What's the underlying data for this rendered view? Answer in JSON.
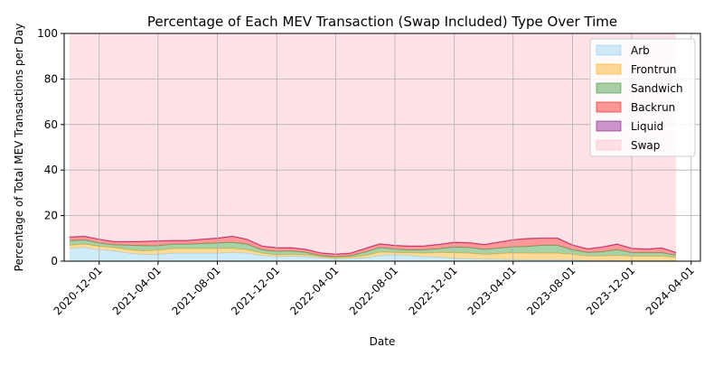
{
  "chart_data": {
    "type": "area",
    "stacked": true,
    "title": "Percentage of Each MEV Transaction (Swap Included) Type Over Time",
    "xlabel": "Date",
    "ylabel": "Percentage of Total MEV Transactions per Day",
    "xlim": [
      "2020-09-20",
      "2024-04-20"
    ],
    "ylim": [
      0,
      100
    ],
    "grid": true,
    "legend_position": "top-right",
    "x_ticks": [
      "2020-12-01",
      "2021-04-01",
      "2021-08-01",
      "2021-12-01",
      "2022-04-01",
      "2022-08-01",
      "2022-12-01",
      "2023-04-01",
      "2023-08-01",
      "2023-12-01",
      "2024-04-01"
    ],
    "y_ticks": [
      0,
      20,
      40,
      60,
      80,
      100
    ],
    "x": [
      "2020-10-01",
      "2020-11-01",
      "2020-12-01",
      "2021-01-01",
      "2021-02-01",
      "2021-03-01",
      "2021-04-01",
      "2021-05-01",
      "2021-06-01",
      "2021-07-01",
      "2021-08-01",
      "2021-09-01",
      "2021-10-01",
      "2021-11-01",
      "2021-12-01",
      "2022-01-01",
      "2022-02-01",
      "2022-03-01",
      "2022-04-01",
      "2022-05-01",
      "2022-06-01",
      "2022-07-01",
      "2022-08-01",
      "2022-09-01",
      "2022-10-01",
      "2022-11-01",
      "2022-12-01",
      "2023-01-01",
      "2023-02-01",
      "2023-03-01",
      "2023-04-01",
      "2023-05-01",
      "2023-06-01",
      "2023-07-01",
      "2023-08-01",
      "2023-09-01",
      "2023-10-01",
      "2023-11-01",
      "2023-12-01",
      "2024-01-01",
      "2024-02-01",
      "2024-03-01"
    ],
    "series": [
      {
        "name": "Arb",
        "color": "#87ceeb",
        "values": [
          5.5,
          6.0,
          5.0,
          4.5,
          3.5,
          3.0,
          3.0,
          3.5,
          3.5,
          3.5,
          3.5,
          3.8,
          3.5,
          2.5,
          2.0,
          2.3,
          2.0,
          1.5,
          1.0,
          1.2,
          1.5,
          2.5,
          2.8,
          2.5,
          2.0,
          1.8,
          1.2,
          1.0,
          0.8,
          0.8,
          0.6,
          0.5,
          0.5,
          0.5,
          0.5,
          0.3,
          0.3,
          0.3,
          0.2,
          0.2,
          0.2,
          0.2
        ]
      },
      {
        "name": "Frontrun",
        "color": "#ffa500",
        "values": [
          1.5,
          1.5,
          1.5,
          1.5,
          1.5,
          1.5,
          1.8,
          2.0,
          2.0,
          2.0,
          2.0,
          1.8,
          1.5,
          1.0,
          0.8,
          0.8,
          0.8,
          0.5,
          0.5,
          0.6,
          1.0,
          1.5,
          1.0,
          1.2,
          1.5,
          2.0,
          2.5,
          2.5,
          2.2,
          2.5,
          3.0,
          3.0,
          3.0,
          3.0,
          2.5,
          2.0,
          2.0,
          2.3,
          2.0,
          2.0,
          2.0,
          1.5
        ]
      },
      {
        "name": "Sandwich",
        "color": "#228b22",
        "values": [
          2.0,
          1.8,
          1.5,
          1.2,
          2.0,
          2.3,
          2.0,
          2.0,
          2.0,
          2.3,
          2.5,
          2.7,
          2.5,
          1.5,
          1.5,
          1.4,
          1.0,
          0.5,
          0.5,
          0.6,
          1.5,
          2.0,
          1.5,
          1.2,
          1.5,
          1.7,
          2.5,
          2.5,
          2.2,
          2.4,
          2.7,
          3.0,
          3.5,
          3.5,
          2.0,
          1.5,
          1.8,
          2.5,
          1.5,
          1.5,
          1.5,
          1.0
        ]
      },
      {
        "name": "Backrun",
        "color": "#ff0000",
        "values": [
          1.5,
          1.5,
          1.5,
          1.3,
          1.5,
          1.8,
          2.0,
          1.5,
          1.5,
          1.7,
          2.0,
          2.5,
          2.0,
          1.5,
          1.5,
          1.3,
          1.2,
          1.0,
          1.0,
          1.0,
          1.5,
          1.5,
          1.5,
          1.6,
          1.6,
          1.8,
          2.0,
          2.0,
          2.0,
          2.5,
          3.0,
          3.3,
          3.0,
          3.0,
          2.0,
          1.5,
          2.0,
          2.3,
          1.8,
          1.5,
          2.0,
          1.0
        ]
      },
      {
        "name": "Liquid",
        "color": "#800080",
        "values": [
          0.2,
          0.2,
          0.2,
          0.2,
          0.2,
          0.2,
          0.2,
          0.2,
          0.2,
          0.2,
          0.2,
          0.2,
          0.2,
          0.2,
          0.2,
          0.2,
          0.2,
          0.2,
          0.2,
          0.2,
          0.2,
          0.2,
          0.2,
          0.2,
          0.2,
          0.2,
          0.2,
          0.2,
          0.2,
          0.2,
          0.2,
          0.2,
          0.2,
          0.2,
          0.2,
          0.2,
          0.2,
          0.2,
          0.2,
          0.2,
          0.2,
          0.2
        ]
      },
      {
        "name": "Swap",
        "color": "#ffb6c1",
        "values": [
          89.3,
          89.0,
          90.3,
          91.3,
          91.3,
          91.2,
          91.0,
          90.8,
          90.8,
          90.3,
          89.8,
          89.0,
          90.3,
          93.3,
          94.0,
          94.0,
          94.8,
          96.3,
          96.8,
          96.4,
          94.3,
          92.3,
          93.0,
          93.3,
          93.2,
          92.5,
          91.6,
          91.8,
          92.6,
          91.6,
          90.5,
          90.0,
          89.8,
          89.8,
          92.8,
          94.5,
          93.7,
          92.4,
          94.3,
          94.6,
          94.1,
          96.1
        ]
      }
    ]
  }
}
